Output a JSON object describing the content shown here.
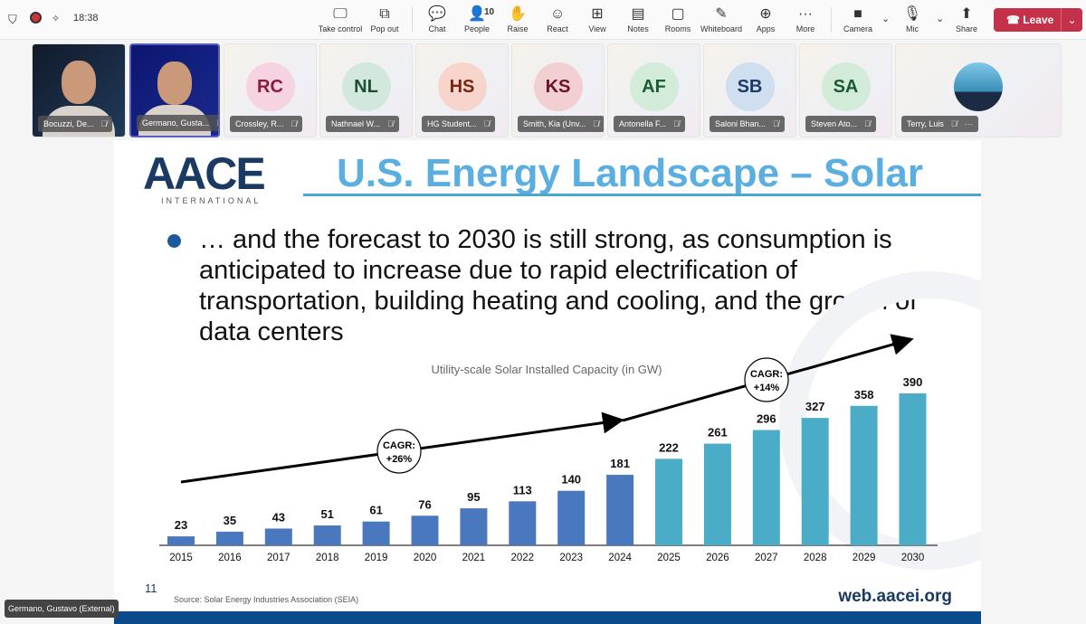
{
  "toolbar": {
    "time": "18:38",
    "people_count": "10",
    "buttons": [
      {
        "label": "Take control",
        "icon": "screen-cursor-icon"
      },
      {
        "label": "Pop out",
        "icon": "pop-out-icon"
      },
      {
        "label": "Chat",
        "icon": "chat-icon"
      },
      {
        "label": "People",
        "icon": "people-icon"
      },
      {
        "label": "Raise",
        "icon": "hand-icon"
      },
      {
        "label": "React",
        "icon": "smiley-icon"
      },
      {
        "label": "View",
        "icon": "grid-icon"
      },
      {
        "label": "Notes",
        "icon": "notes-icon"
      },
      {
        "label": "Rooms",
        "icon": "rooms-icon"
      },
      {
        "label": "Whiteboard",
        "icon": "whiteboard-icon"
      },
      {
        "label": "Apps",
        "icon": "plus-icon"
      },
      {
        "label": "More",
        "icon": "ellipsis-icon"
      },
      {
        "label": "Camera",
        "icon": "camera-off-icon"
      },
      {
        "label": "Mic",
        "icon": "mic-off-icon"
      },
      {
        "label": "Share",
        "icon": "share-icon"
      }
    ],
    "leave_label": "Leave",
    "leave_color": "#c4314b"
  },
  "participants": [
    {
      "name": "Bocuzzi, De...",
      "type": "video"
    },
    {
      "name": "Germano, Gusta...",
      "type": "video",
      "selected": true
    },
    {
      "name": "Crossley, R...",
      "initials": "RC",
      "bg": "#f6d3e0",
      "fg": "#8a1c3c"
    },
    {
      "name": "Nathnael W...",
      "initials": "NL",
      "bg": "#d3e8dc",
      "fg": "#1d4d33"
    },
    {
      "name": "HG Student...",
      "initials": "HS",
      "bg": "#f7d5cc",
      "fg": "#7a2414"
    },
    {
      "name": "Smith, Kia (Unv...",
      "initials": "KS",
      "bg": "#f2cfd2",
      "fg": "#6a1422"
    },
    {
      "name": "Antonella F...",
      "initials": "AF",
      "bg": "#d3ecd9",
      "fg": "#1c5a32"
    },
    {
      "name": "Saloni Bhan...",
      "initials": "SB",
      "bg": "#cfdff0",
      "fg": "#1c3a66"
    },
    {
      "name": "Steven Ato...",
      "initials": "SA",
      "bg": "#d3ecd9",
      "fg": "#1c5a32"
    },
    {
      "name": "Terry, Luis",
      "type": "photo"
    }
  ],
  "slide": {
    "logo_text": "AACE",
    "logo_sub": "INTERNATIONAL",
    "title": "U.S. Energy Landscape – Solar",
    "bullet": "… and the forecast to 2030 is still strong, as consumption is anticipated to increase due to rapid electrification of transportation, building heating and cooling, and the growth of data centers",
    "page_number": "11",
    "source": "Source: Solar Energy Industries Association (SEIA)",
    "website": "web.aacei.org"
  },
  "chart_data": {
    "type": "bar",
    "title": "Utility-scale Solar Installed Capacity  (in GW)",
    "categories": [
      "2015",
      "2016",
      "2017",
      "2018",
      "2019",
      "2020",
      "2021",
      "2022",
      "2023",
      "2024",
      "2025",
      "2026",
      "2027",
      "2028",
      "2029",
      "2030"
    ],
    "values": [
      23,
      35,
      43,
      51,
      61,
      76,
      95,
      113,
      140,
      181,
      222,
      261,
      296,
      327,
      358,
      390
    ],
    "colors": {
      "historical": "#4a78bf",
      "forecast": "#4aacc6"
    },
    "forecast_from": "2025",
    "annotations": [
      {
        "label_line1": "CAGR:",
        "label_line2": "+26%"
      },
      {
        "label_line1": "CAGR:",
        "label_line2": "+14%"
      }
    ],
    "ylim": [
      0,
      390
    ]
  },
  "presenter_label": "Germano, Gustavo (External)"
}
